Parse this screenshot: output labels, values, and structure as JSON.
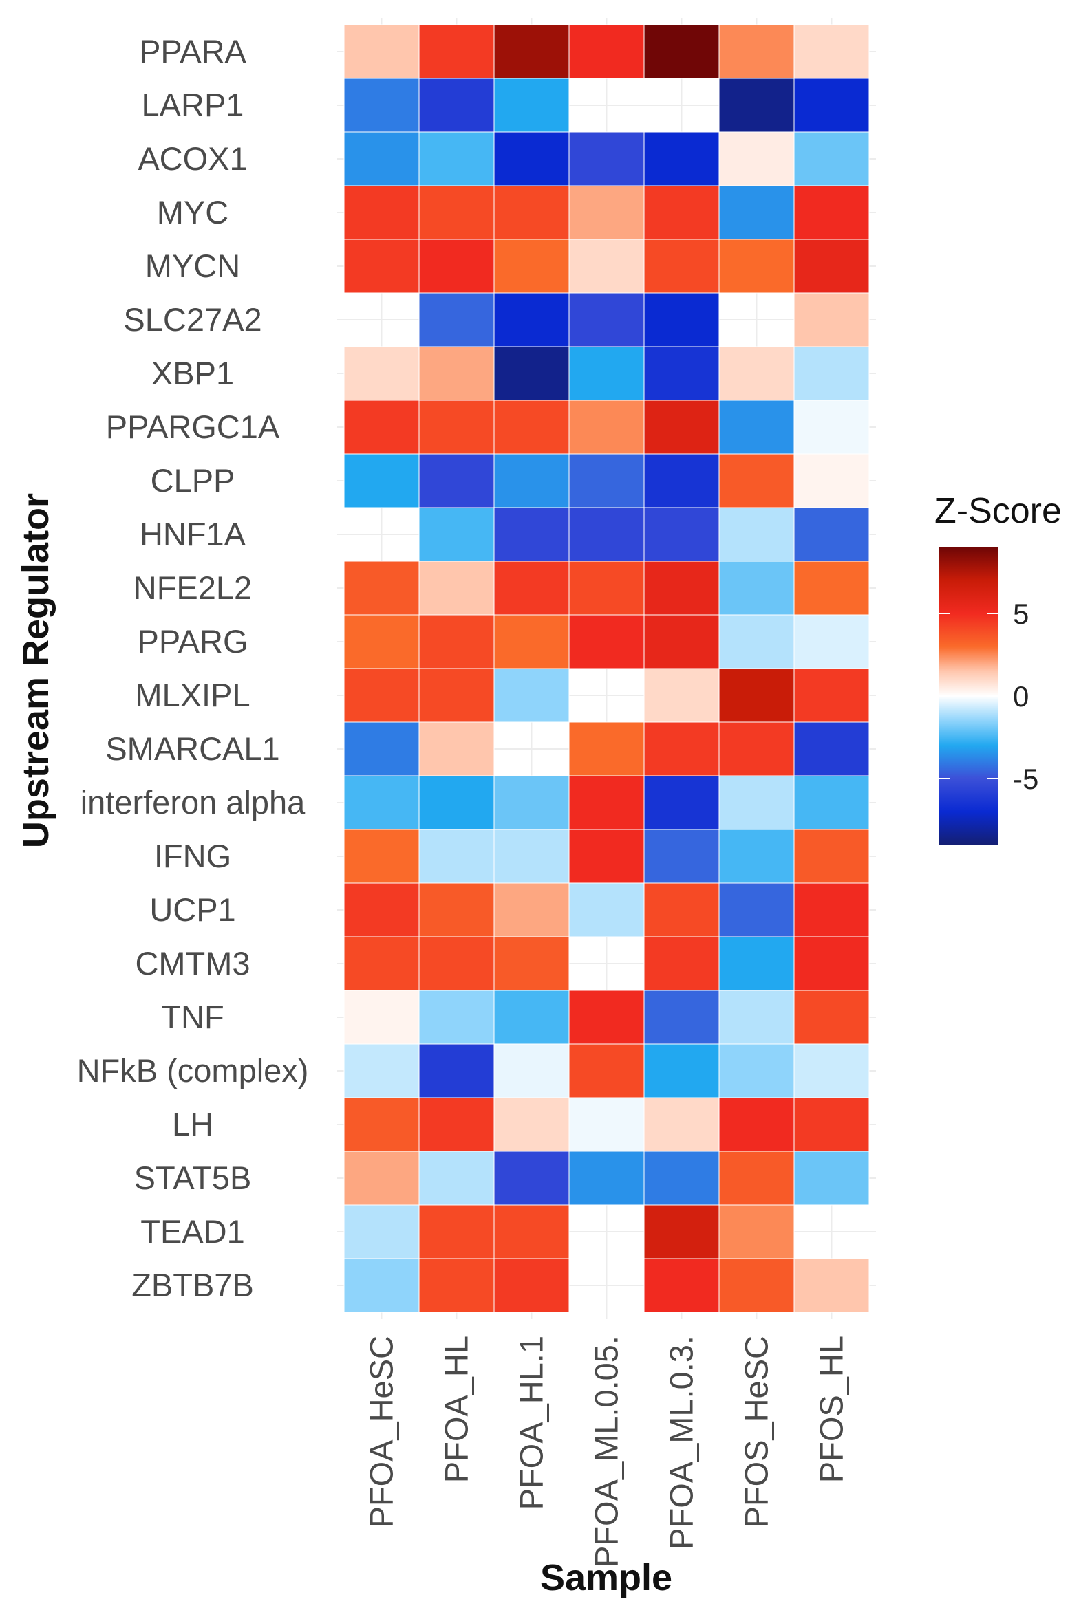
{
  "chart_data": {
    "type": "heatmap",
    "xlabel": "Sample",
    "ylabel": "Upstream Regulator",
    "columns": [
      "PFOA_HeSC",
      "PFOA_HL",
      "PFOA_HL.1",
      "PFOA_ML.0.05.",
      "PFOA_ML.0.3.",
      "PFOS_HeSC",
      "PFOS_HL"
    ],
    "rows": [
      "PPARA",
      "LARP1",
      "ACOX1",
      "MYC",
      "MYCN",
      "SLC27A2",
      "XBP1",
      "PPARGC1A",
      "CLPP",
      "HNF1A",
      "NFE2L2",
      "PPARG",
      "MLXIPL",
      "SMARCAL1",
      "interferon alpha",
      "IFNG",
      "UCP1",
      "CMTM3",
      "TNF",
      "NFkB (complex)",
      "LH",
      "STAT5B",
      "TEAD1",
      "ZBTB7B"
    ],
    "values": [
      [
        1.5,
        4.5,
        8.0,
        5.0,
        9.0,
        2.5,
        1.0
      ],
      [
        -4.0,
        -6.0,
        -3.0,
        null,
        null,
        -8.5,
        -7.0
      ],
      [
        -3.5,
        -2.5,
        -7.0,
        -5.5,
        -7.0,
        0.5,
        -2.0
      ],
      [
        4.5,
        4.0,
        4.0,
        2.0,
        4.5,
        -3.5,
        5.0
      ],
      [
        4.5,
        5.0,
        3.0,
        1.0,
        4.0,
        3.0,
        5.5
      ],
      [
        null,
        -4.5,
        -7.0,
        -5.5,
        -7.0,
        null,
        1.5
      ],
      [
        1.0,
        2.0,
        -8.5,
        -3.0,
        -6.5,
        1.0,
        -1.0
      ],
      [
        4.5,
        4.0,
        4.0,
        2.5,
        6.0,
        -3.5,
        -0.2
      ],
      [
        -3.0,
        -5.5,
        -3.5,
        -4.5,
        -6.5,
        3.5,
        0.3
      ],
      [
        null,
        -2.5,
        -5.5,
        -5.5,
        -5.5,
        -1.0,
        -4.5
      ],
      [
        3.5,
        1.5,
        4.5,
        4.0,
        5.5,
        -2.0,
        3.0
      ],
      [
        3.0,
        4.0,
        3.0,
        5.0,
        5.5,
        -1.0,
        -0.5
      ],
      [
        4.0,
        4.0,
        -1.5,
        null,
        1.0,
        7.0,
        4.5
      ],
      [
        -4.0,
        1.5,
        null,
        3.0,
        4.5,
        4.5,
        -6.0
      ],
      [
        -2.5,
        -3.0,
        -2.0,
        5.0,
        -6.5,
        -1.0,
        -2.5
      ],
      [
        3.0,
        -1.0,
        -1.0,
        5.0,
        -4.5,
        -2.5,
        3.5
      ],
      [
        4.5,
        3.5,
        2.0,
        -1.0,
        4.0,
        -4.5,
        5.0
      ],
      [
        4.0,
        4.0,
        3.5,
        null,
        4.5,
        -3.0,
        5.0
      ],
      [
        0.3,
        -1.5,
        -2.5,
        5.0,
        -4.5,
        -1.0,
        4.0
      ],
      [
        -0.8,
        -6.0,
        -0.3,
        4.0,
        -3.0,
        -1.5,
        -0.7
      ],
      [
        3.5,
        4.5,
        1.0,
        -0.2,
        1.0,
        5.0,
        4.5
      ],
      [
        2.0,
        -1.0,
        -5.5,
        -3.5,
        -4.0,
        3.5,
        -2.0
      ],
      [
        -1.0,
        4.0,
        4.0,
        null,
        6.5,
        2.5,
        null
      ],
      [
        -1.5,
        4.0,
        4.5,
        null,
        5.0,
        3.5,
        1.5
      ]
    ],
    "legend": {
      "title": "Z-Score",
      "ticks": [
        5,
        0,
        -5
      ],
      "range": [
        -9,
        9
      ],
      "placement": "right"
    },
    "color_scale": {
      "stops": [
        {
          "value": -9,
          "color": "#141f73"
        },
        {
          "value": -7,
          "color": "#0a2ad2"
        },
        {
          "value": -5,
          "color": "#3c50d8"
        },
        {
          "value": -3,
          "color": "#22a8f0"
        },
        {
          "value": -1.5,
          "color": "#8fd4fb"
        },
        {
          "value": 0,
          "color": "#ffffff"
        },
        {
          "value": 1.5,
          "color": "#ffc6ad"
        },
        {
          "value": 3,
          "color": "#fa6a2a"
        },
        {
          "value": 5,
          "color": "#f12a20"
        },
        {
          "value": 7,
          "color": "#c91c08"
        },
        {
          "value": 9,
          "color": "#700606"
        }
      ]
    }
  }
}
